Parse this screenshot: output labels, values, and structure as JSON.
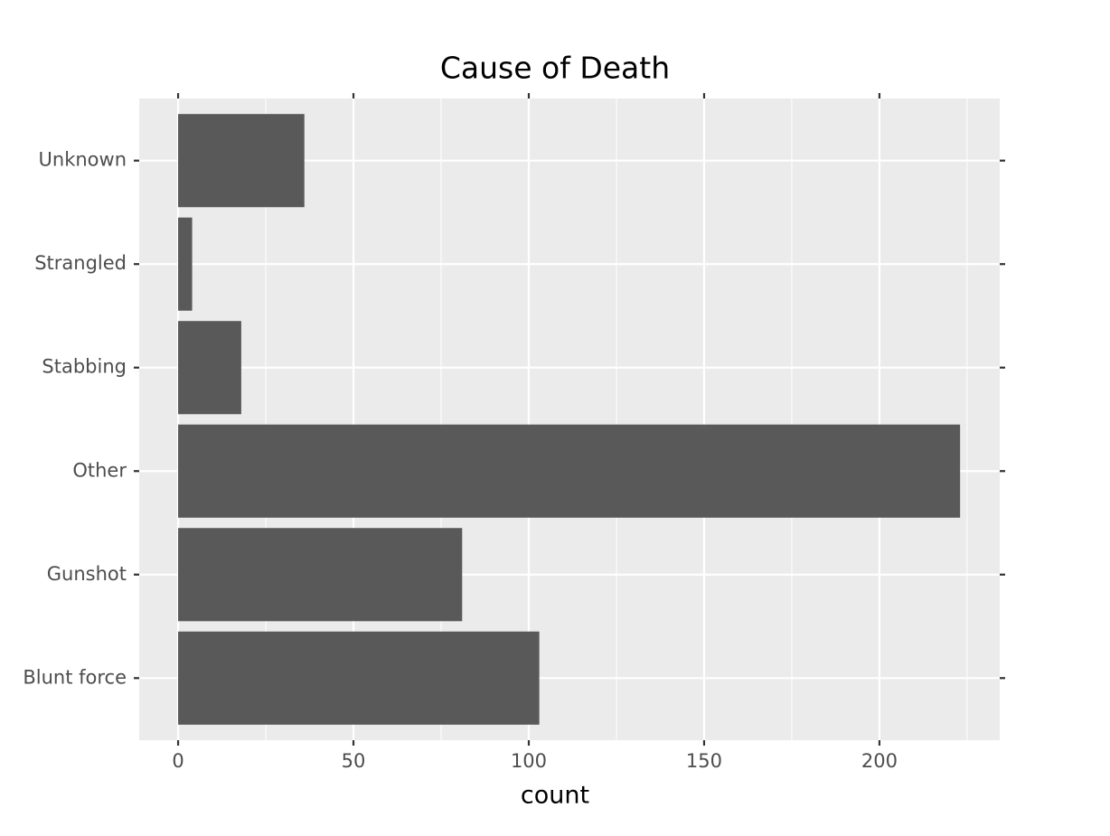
{
  "chart_data": {
    "type": "barh",
    "title": "Cause of Death",
    "x_label": "count",
    "categories": [
      "Blunt force",
      "Gunshot",
      "Other",
      "Stabbing",
      "Strangled",
      "Unknown"
    ],
    "values": [
      103,
      81,
      223,
      18,
      4,
      36
    ],
    "color": "#595959",
    "xlim": [
      -11.1,
      234.3
    ],
    "xticks": [
      0,
      50,
      100,
      150,
      200
    ],
    "xminor": [
      25,
      75,
      125,
      175,
      225
    ],
    "grid": true,
    "panel_color": "#ebebeb"
  }
}
